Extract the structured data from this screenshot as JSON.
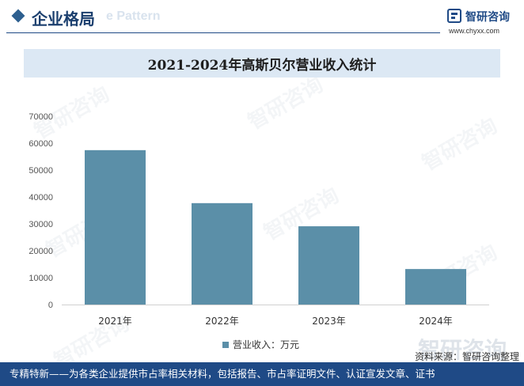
{
  "header": {
    "title": "企业格局",
    "ghost_text": "e Pattern",
    "icon": "diamond-icon"
  },
  "logo": {
    "icon": "zhiyan-logo-icon",
    "name": "智研咨询",
    "url": "www.chyxx.com"
  },
  "chart_data": {
    "type": "bar",
    "title": "2021-2024年高斯贝尔营业收入统计",
    "categories": [
      "2021年",
      "2022年",
      "2023年",
      "2024年"
    ],
    "series": [
      {
        "name": "营业收入：万元",
        "values": [
          57400,
          37700,
          29100,
          13200
        ]
      }
    ],
    "xlabel": "",
    "ylabel": "",
    "ylim": [
      0,
      70000
    ],
    "yticks": [
      0,
      10000,
      20000,
      30000,
      40000,
      50000,
      60000,
      70000
    ],
    "grid": false,
    "legend": "bottom-center"
  },
  "source": "资料来源：智研咨询整理",
  "footer": {
    "text": "专精特新——为各类企业提供市占率相关材料，包括报告、市占率证明文件、认证宣发文章、证书"
  },
  "watermark": "智研咨询",
  "colors": {
    "accent": "#1f4a86",
    "bar": "#5b8fa8",
    "title_band": "#dce8f4",
    "footer_bg": "#1f4a86"
  }
}
